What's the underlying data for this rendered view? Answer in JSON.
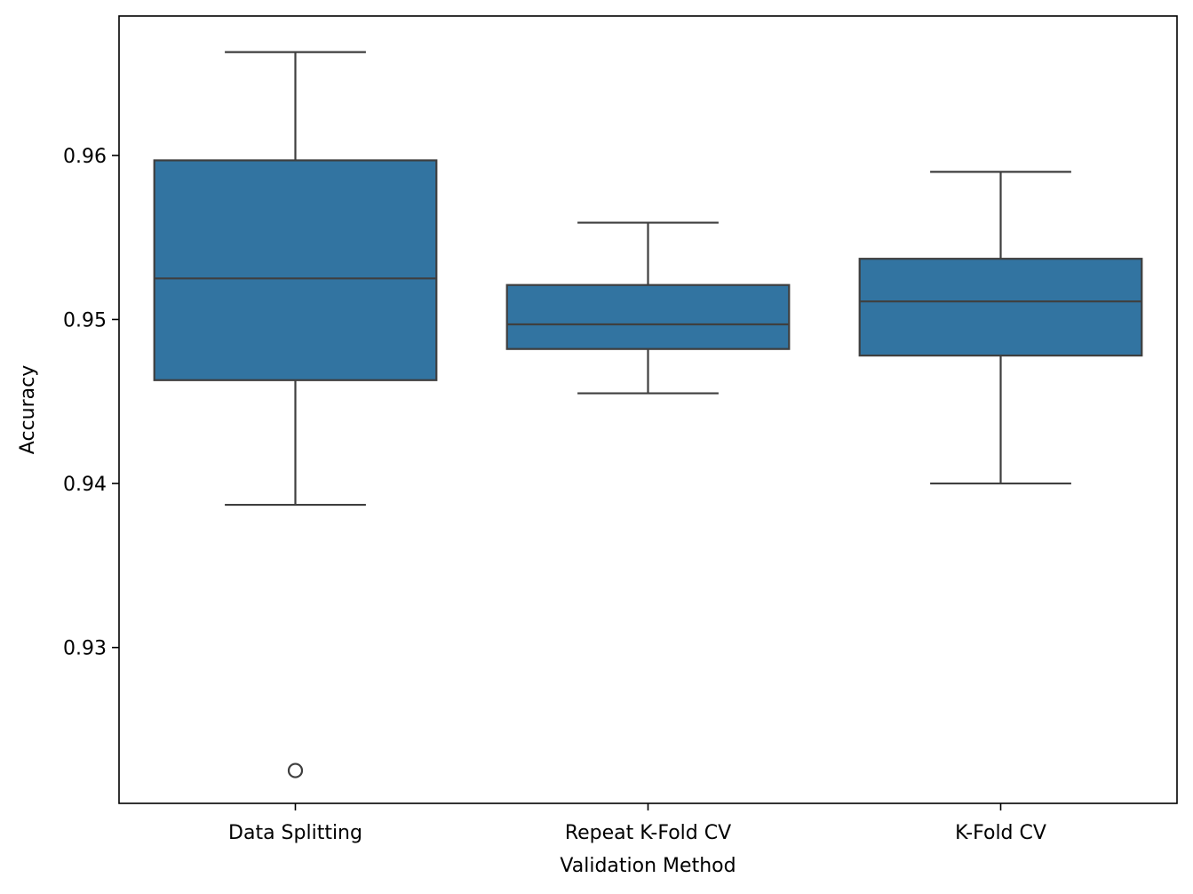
{
  "chart_data": {
    "type": "box",
    "title": "",
    "xlabel": "Validation Method",
    "ylabel": "Accuracy",
    "ylim": [
      0.9205,
      0.9685
    ],
    "yticks": [
      0.93,
      0.94,
      0.95,
      0.96
    ],
    "ytick_labels": [
      "0.93",
      "0.94",
      "0.95",
      "0.96"
    ],
    "grid": false,
    "legend": "none",
    "categories": [
      "Data Splitting",
      "Repeat K-Fold CV",
      "K-Fold CV"
    ],
    "boxes": [
      {
        "category": "Data Splitting",
        "whisker_low": 0.9387,
        "q1": 0.9463,
        "median": 0.9525,
        "q3": 0.9597,
        "whisker_high": 0.9663,
        "outliers": [
          0.9225
        ]
      },
      {
        "category": "Repeat K-Fold CV",
        "whisker_low": 0.9455,
        "q1": 0.9482,
        "median": 0.9497,
        "q3": 0.9521,
        "whisker_high": 0.9559,
        "outliers": []
      },
      {
        "category": "K-Fold CV",
        "whisker_low": 0.94,
        "q1": 0.9478,
        "median": 0.9511,
        "q3": 0.9537,
        "whisker_high": 0.959,
        "outliers": []
      }
    ],
    "colors": {
      "box_fill": "#3274a1",
      "line": "#3f3f3f",
      "axis": "#000000"
    }
  }
}
